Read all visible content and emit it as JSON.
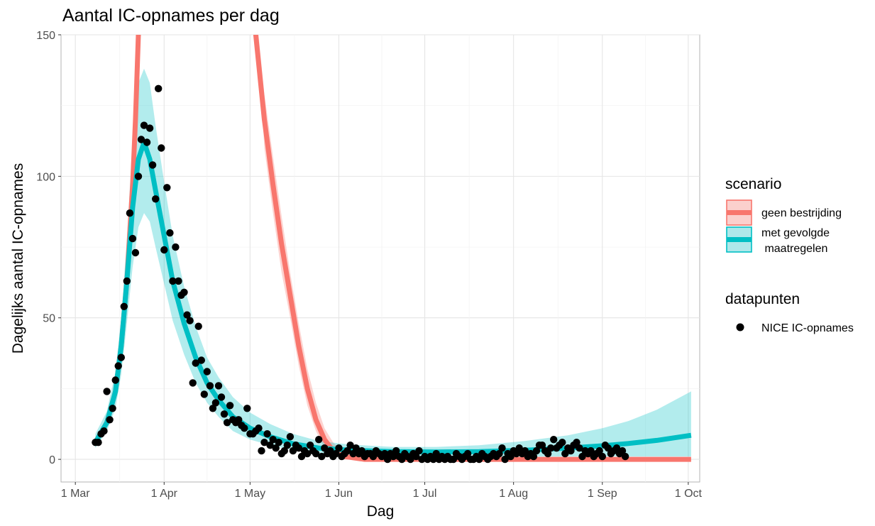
{
  "chart_data": {
    "type": "line",
    "title": "Aantal IC-opnames per dag",
    "xlabel": "Dag",
    "ylabel": "Dagelijks aantal IC-opnames",
    "x_domain": [
      "2020-02-25",
      "2020-10-05"
    ],
    "ylim": [
      -8,
      150
    ],
    "y_ticks": [
      0,
      50,
      100,
      150
    ],
    "x_ticks": [
      {
        "date": "2020-03-01",
        "label": "1 Mar"
      },
      {
        "date": "2020-04-01",
        "label": "1 Apr"
      },
      {
        "date": "2020-05-01",
        "label": "1 May"
      },
      {
        "date": "2020-06-01",
        "label": "1 Jun"
      },
      {
        "date": "2020-07-01",
        "label": "1 Jul"
      },
      {
        "date": "2020-08-01",
        "label": "1 Aug"
      },
      {
        "date": "2020-09-01",
        "label": "1 Sep"
      },
      {
        "date": "2020-10-01",
        "label": "1 Oct"
      }
    ],
    "grid": true,
    "legend_position": "right",
    "series": [
      {
        "name": "geen bestrijding",
        "color": "#f8766d",
        "segments": [
          [
            [
              "2020-03-08",
              6
            ],
            [
              "2020-03-12",
              13
            ],
            [
              "2020-03-15",
              24
            ],
            [
              "2020-03-17",
              40
            ],
            [
              "2020-03-19",
              63
            ],
            [
              "2020-03-21",
              97
            ],
            [
              "2020-03-22",
              120
            ],
            [
              "2020-03-23",
              150
            ],
            [
              "2020-03-23",
              160
            ]
          ],
          [
            [
              "2020-05-03",
              160
            ],
            [
              "2020-05-03",
              150
            ],
            [
              "2020-05-06",
              120
            ],
            [
              "2020-05-09",
              97
            ],
            [
              "2020-05-12",
              76
            ],
            [
              "2020-05-15",
              58
            ],
            [
              "2020-05-18",
              40
            ],
            [
              "2020-05-21",
              25
            ],
            [
              "2020-05-24",
              14
            ],
            [
              "2020-05-27",
              7
            ],
            [
              "2020-05-30",
              3
            ],
            [
              "2020-06-03",
              1
            ],
            [
              "2020-06-10",
              0
            ],
            [
              "2020-10-02",
              0
            ]
          ]
        ],
        "band": [
          [
            "2020-05-03",
            160,
            160
          ],
          [
            "2020-05-06",
            129,
            110
          ],
          [
            "2020-05-09",
            107,
            87
          ],
          [
            "2020-05-12",
            86,
            66
          ],
          [
            "2020-05-15",
            66,
            50
          ],
          [
            "2020-05-18",
            48,
            33
          ],
          [
            "2020-05-21",
            32,
            19
          ],
          [
            "2020-05-24",
            20,
            10
          ],
          [
            "2020-05-27",
            11,
            4
          ],
          [
            "2020-05-30",
            6,
            1.5
          ],
          [
            "2020-06-03",
            2,
            0
          ],
          [
            "2020-06-10",
            0.5,
            0
          ]
        ]
      },
      {
        "name": "met gevolgde maatregelen",
        "color": "#00bfc4",
        "points": [
          [
            "2020-03-08",
            6
          ],
          [
            "2020-03-12",
            13
          ],
          [
            "2020-03-15",
            24
          ],
          [
            "2020-03-17",
            40
          ],
          [
            "2020-03-19",
            63
          ],
          [
            "2020-03-21",
            89
          ],
          [
            "2020-03-23",
            106
          ],
          [
            "2020-03-25",
            112
          ],
          [
            "2020-03-27",
            106
          ],
          [
            "2020-03-29",
            95
          ],
          [
            "2020-04-01",
            79
          ],
          [
            "2020-04-04",
            63
          ],
          [
            "2020-04-08",
            48
          ],
          [
            "2020-04-12",
            36
          ],
          [
            "2020-04-16",
            27
          ],
          [
            "2020-04-20",
            21
          ],
          [
            "2020-04-25",
            15
          ],
          [
            "2020-05-01",
            11
          ],
          [
            "2020-05-08",
            8
          ],
          [
            "2020-05-16",
            5.5
          ],
          [
            "2020-05-25",
            4
          ],
          [
            "2020-06-05",
            3.2
          ],
          [
            "2020-06-20",
            2.7
          ],
          [
            "2020-07-05",
            2.6
          ],
          [
            "2020-07-20",
            2.7
          ],
          [
            "2020-08-05",
            3.2
          ],
          [
            "2020-08-20",
            4
          ],
          [
            "2020-09-01",
            4.8
          ],
          [
            "2020-09-10",
            5.6
          ],
          [
            "2020-09-20",
            6.7
          ],
          [
            "2020-10-02",
            8.5
          ]
        ],
        "band": [
          [
            "2020-03-08",
            4,
            9
          ],
          [
            "2020-03-12",
            10,
            17
          ],
          [
            "2020-03-15",
            18,
            31
          ],
          [
            "2020-03-17",
            30,
            50
          ],
          [
            "2020-03-19",
            48,
            78
          ],
          [
            "2020-03-21",
            68,
            113
          ],
          [
            "2020-03-23",
            82,
            133
          ],
          [
            "2020-03-25",
            87,
            138
          ],
          [
            "2020-03-27",
            84,
            133
          ],
          [
            "2020-03-29",
            75,
            118
          ],
          [
            "2020-04-01",
            62,
            98
          ],
          [
            "2020-04-04",
            49,
            79
          ],
          [
            "2020-04-08",
            37,
            61
          ],
          [
            "2020-04-12",
            27,
            47
          ],
          [
            "2020-04-16",
            20,
            36
          ],
          [
            "2020-04-20",
            15,
            29
          ],
          [
            "2020-04-25",
            10,
            22
          ],
          [
            "2020-05-01",
            7,
            16.5
          ],
          [
            "2020-05-08",
            5,
            12.5
          ],
          [
            "2020-05-16",
            3.2,
            9
          ],
          [
            "2020-05-25",
            2.2,
            6.5
          ],
          [
            "2020-06-05",
            1.5,
            5.2
          ],
          [
            "2020-06-20",
            1.2,
            4.4
          ],
          [
            "2020-07-05",
            1,
            4.4
          ],
          [
            "2020-07-20",
            0.9,
            5
          ],
          [
            "2020-08-05",
            1,
            6.5
          ],
          [
            "2020-08-20",
            1,
            8.5
          ],
          [
            "2020-09-01",
            1,
            11
          ],
          [
            "2020-09-10",
            1,
            13.5
          ],
          [
            "2020-09-20",
            1,
            17.5
          ],
          [
            "2020-10-02",
            1,
            24
          ]
        ]
      }
    ],
    "scatter": {
      "name": "NICE IC-opnames",
      "color": "#000000",
      "points": [
        [
          "2020-03-08",
          6
        ],
        [
          "2020-03-09",
          6
        ],
        [
          "2020-03-10",
          9
        ],
        [
          "2020-03-11",
          10
        ],
        [
          "2020-03-12",
          24
        ],
        [
          "2020-03-13",
          14
        ],
        [
          "2020-03-14",
          18
        ],
        [
          "2020-03-15",
          28
        ],
        [
          "2020-03-16",
          33
        ],
        [
          "2020-03-17",
          36
        ],
        [
          "2020-03-18",
          54
        ],
        [
          "2020-03-19",
          63
        ],
        [
          "2020-03-20",
          87
        ],
        [
          "2020-03-21",
          78
        ],
        [
          "2020-03-22",
          73
        ],
        [
          "2020-03-23",
          100
        ],
        [
          "2020-03-24",
          113
        ],
        [
          "2020-03-25",
          118
        ],
        [
          "2020-03-26",
          112
        ],
        [
          "2020-03-27",
          117
        ],
        [
          "2020-03-28",
          104
        ],
        [
          "2020-03-29",
          92
        ],
        [
          "2020-03-30",
          131
        ],
        [
          "2020-03-31",
          110
        ],
        [
          "2020-04-01",
          74
        ],
        [
          "2020-04-02",
          96
        ],
        [
          "2020-04-03",
          80
        ],
        [
          "2020-04-04",
          63
        ],
        [
          "2020-04-05",
          75
        ],
        [
          "2020-04-06",
          63
        ],
        [
          "2020-04-07",
          58
        ],
        [
          "2020-04-08",
          59
        ],
        [
          "2020-04-09",
          51
        ],
        [
          "2020-04-10",
          49
        ],
        [
          "2020-04-11",
          27
        ],
        [
          "2020-04-12",
          34
        ],
        [
          "2020-04-13",
          47
        ],
        [
          "2020-04-14",
          35
        ],
        [
          "2020-04-15",
          23
        ],
        [
          "2020-04-16",
          31
        ],
        [
          "2020-04-17",
          26
        ],
        [
          "2020-04-18",
          18
        ],
        [
          "2020-04-19",
          20
        ],
        [
          "2020-04-20",
          26
        ],
        [
          "2020-04-21",
          22
        ],
        [
          "2020-04-22",
          16
        ],
        [
          "2020-04-23",
          13
        ],
        [
          "2020-04-24",
          19
        ],
        [
          "2020-04-25",
          14
        ],
        [
          "2020-04-26",
          13
        ],
        [
          "2020-04-27",
          14
        ],
        [
          "2020-04-28",
          12
        ],
        [
          "2020-04-29",
          11
        ],
        [
          "2020-04-30",
          18
        ],
        [
          "2020-05-01",
          9
        ],
        [
          "2020-05-02",
          9
        ],
        [
          "2020-05-03",
          10
        ],
        [
          "2020-05-04",
          11
        ],
        [
          "2020-05-05",
          3
        ],
        [
          "2020-05-06",
          6
        ],
        [
          "2020-05-07",
          9
        ],
        [
          "2020-05-08",
          5
        ],
        [
          "2020-05-09",
          7
        ],
        [
          "2020-05-10",
          4
        ],
        [
          "2020-05-11",
          6
        ],
        [
          "2020-05-12",
          2
        ],
        [
          "2020-05-13",
          3
        ],
        [
          "2020-05-14",
          5
        ],
        [
          "2020-05-15",
          8
        ],
        [
          "2020-05-16",
          3
        ],
        [
          "2020-05-17",
          5
        ],
        [
          "2020-05-18",
          4
        ],
        [
          "2020-05-19",
          1
        ],
        [
          "2020-05-20",
          3
        ],
        [
          "2020-05-21",
          2
        ],
        [
          "2020-05-22",
          5
        ],
        [
          "2020-05-23",
          3
        ],
        [
          "2020-05-24",
          2
        ],
        [
          "2020-05-25",
          7
        ],
        [
          "2020-05-26",
          1
        ],
        [
          "2020-05-27",
          4
        ],
        [
          "2020-05-28",
          2
        ],
        [
          "2020-05-29",
          3
        ],
        [
          "2020-05-30",
          1
        ],
        [
          "2020-05-31",
          2
        ],
        [
          "2020-06-01",
          4
        ],
        [
          "2020-06-02",
          1
        ],
        [
          "2020-06-03",
          2
        ],
        [
          "2020-06-04",
          3
        ],
        [
          "2020-06-05",
          5
        ],
        [
          "2020-06-06",
          2
        ],
        [
          "2020-06-07",
          4
        ],
        [
          "2020-06-08",
          2
        ],
        [
          "2020-06-09",
          3
        ],
        [
          "2020-06-10",
          1
        ],
        [
          "2020-06-11",
          2
        ],
        [
          "2020-06-12",
          2
        ],
        [
          "2020-06-13",
          1
        ],
        [
          "2020-06-14",
          3
        ],
        [
          "2020-06-15",
          2
        ],
        [
          "2020-06-16",
          1
        ],
        [
          "2020-06-17",
          2
        ],
        [
          "2020-06-18",
          0
        ],
        [
          "2020-06-19",
          2
        ],
        [
          "2020-06-20",
          1
        ],
        [
          "2020-06-21",
          3
        ],
        [
          "2020-06-22",
          1
        ],
        [
          "2020-06-23",
          0
        ],
        [
          "2020-06-24",
          2
        ],
        [
          "2020-06-25",
          1
        ],
        [
          "2020-06-26",
          0
        ],
        [
          "2020-06-27",
          2
        ],
        [
          "2020-06-28",
          1
        ],
        [
          "2020-06-29",
          3
        ],
        [
          "2020-06-30",
          0
        ],
        [
          "2020-07-01",
          1
        ],
        [
          "2020-07-02",
          0
        ],
        [
          "2020-07-03",
          1
        ],
        [
          "2020-07-04",
          0
        ],
        [
          "2020-07-05",
          2
        ],
        [
          "2020-07-06",
          0
        ],
        [
          "2020-07-07",
          1
        ],
        [
          "2020-07-08",
          0
        ],
        [
          "2020-07-09",
          1
        ],
        [
          "2020-07-10",
          0
        ],
        [
          "2020-07-11",
          0
        ],
        [
          "2020-07-12",
          2
        ],
        [
          "2020-07-13",
          1
        ],
        [
          "2020-07-14",
          0
        ],
        [
          "2020-07-15",
          1
        ],
        [
          "2020-07-16",
          2
        ],
        [
          "2020-07-17",
          0
        ],
        [
          "2020-07-18",
          0
        ],
        [
          "2020-07-19",
          1
        ],
        [
          "2020-07-20",
          0
        ],
        [
          "2020-07-21",
          2
        ],
        [
          "2020-07-22",
          1
        ],
        [
          "2020-07-23",
          0
        ],
        [
          "2020-07-24",
          1
        ],
        [
          "2020-07-25",
          2
        ],
        [
          "2020-07-26",
          1
        ],
        [
          "2020-07-27",
          2
        ],
        [
          "2020-07-28",
          4
        ],
        [
          "2020-07-29",
          0
        ],
        [
          "2020-07-30",
          2
        ],
        [
          "2020-07-31",
          1
        ],
        [
          "2020-08-01",
          3
        ],
        [
          "2020-08-02",
          2
        ],
        [
          "2020-08-03",
          4
        ],
        [
          "2020-08-04",
          2
        ],
        [
          "2020-08-05",
          3
        ],
        [
          "2020-08-06",
          1
        ],
        [
          "2020-08-07",
          2
        ],
        [
          "2020-08-08",
          1
        ],
        [
          "2020-08-09",
          3
        ],
        [
          "2020-08-10",
          5
        ],
        [
          "2020-08-11",
          5
        ],
        [
          "2020-08-12",
          3
        ],
        [
          "2020-08-13",
          2
        ],
        [
          "2020-08-14",
          4
        ],
        [
          "2020-08-15",
          7
        ],
        [
          "2020-08-16",
          4
        ],
        [
          "2020-08-17",
          5
        ],
        [
          "2020-08-18",
          6
        ],
        [
          "2020-08-19",
          2
        ],
        [
          "2020-08-20",
          4
        ],
        [
          "2020-08-21",
          3
        ],
        [
          "2020-08-22",
          5
        ],
        [
          "2020-08-23",
          6
        ],
        [
          "2020-08-24",
          4
        ],
        [
          "2020-08-25",
          1
        ],
        [
          "2020-08-26",
          3
        ],
        [
          "2020-08-27",
          2
        ],
        [
          "2020-08-28",
          3
        ],
        [
          "2020-08-29",
          1
        ],
        [
          "2020-08-30",
          2
        ],
        [
          "2020-08-31",
          3
        ],
        [
          "2020-09-01",
          1
        ],
        [
          "2020-09-02",
          5
        ],
        [
          "2020-09-03",
          4
        ],
        [
          "2020-09-04",
          2
        ],
        [
          "2020-09-05",
          3
        ],
        [
          "2020-09-06",
          4
        ],
        [
          "2020-09-07",
          2
        ],
        [
          "2020-09-08",
          3
        ],
        [
          "2020-09-09",
          1
        ]
      ]
    }
  },
  "legend": {
    "scenario_title": "scenario",
    "items": [
      {
        "line1": "geen bestrijding",
        "line2": "",
        "color": "#f8766d",
        "fill": "#fbd0cd"
      },
      {
        "line1": "met gevolgde",
        "line2": " maatregelen",
        "color": "#00bfc4",
        "fill": "#aee8ea"
      }
    ],
    "points_title": "datapunten",
    "points_label": "NICE IC-opnames"
  }
}
